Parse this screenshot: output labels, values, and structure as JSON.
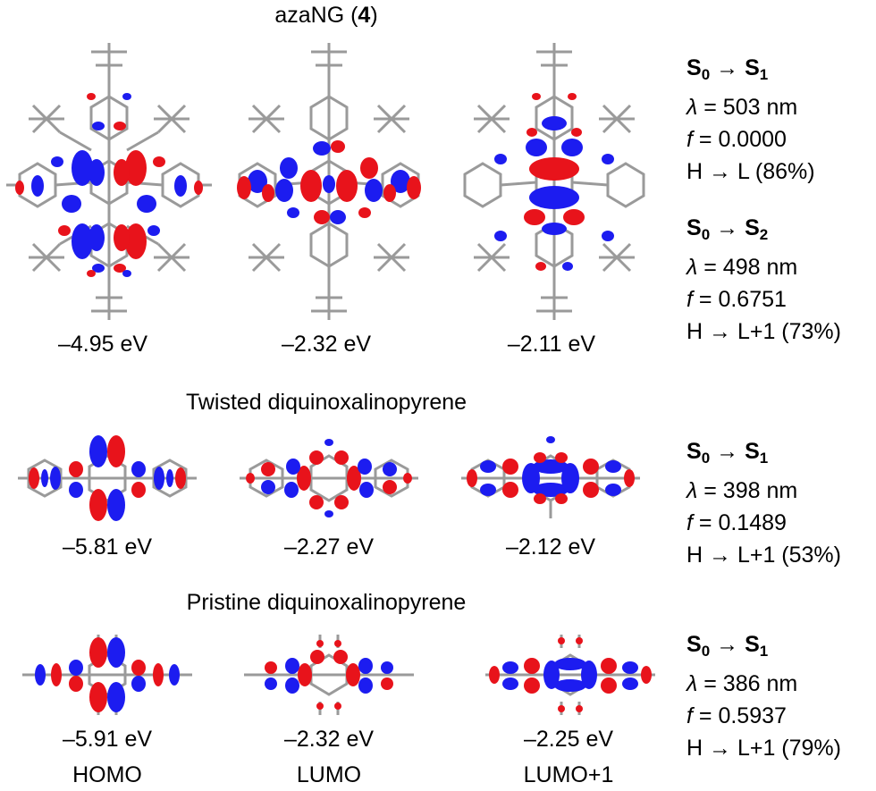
{
  "sections": [
    {
      "title": "azaNG (4)",
      "title_name": "azaNG (",
      "title_num": "4",
      "title_end": ")",
      "energies": [
        "–4.95 eV",
        "–2.32 eV",
        "–2.11 eV"
      ],
      "transitions": [
        {
          "label": "S0 → S1",
          "s_from": "0",
          "s_to": "1",
          "lambda": " = 503 nm",
          "f": " = 0.0000",
          "contrib": "H → L (86%)"
        },
        {
          "label": "S0 → S2",
          "s_from": "0",
          "s_to": "2",
          "lambda": " = 498 nm",
          "f": " = 0.6751",
          "contrib": "H → L+1 (73%)"
        }
      ]
    },
    {
      "title": "Twisted diquinoxalinopyrene",
      "energies": [
        "–5.81 eV",
        "–2.27 eV",
        "–2.12 eV"
      ],
      "transitions": [
        {
          "label": "S0 → S1",
          "s_from": "0",
          "s_to": "1",
          "lambda": " = 398 nm",
          "f": " = 0.1489",
          "contrib": "H → L+1 (53%)"
        }
      ]
    },
    {
      "title": "Pristine diquinoxalinopyrene",
      "energies": [
        "–5.91 eV",
        "–2.32 eV",
        "–2.25 eV"
      ],
      "transitions": [
        {
          "label": "S0 → S1",
          "s_from": "0",
          "s_to": "1",
          "lambda": " = 386 nm",
          "f": " = 0.5937",
          "contrib": "H → L+1 (79%)"
        }
      ]
    }
  ],
  "orbital_labels": [
    "HOMO",
    "LUMO",
    "LUMO+1"
  ],
  "symbols": {
    "S": "S",
    "arrow": " → ",
    "lambda": "λ",
    "f": "f"
  },
  "colors": {
    "positive_lobe": "#e8131b",
    "negative_lobe": "#1c1cf0",
    "bond": "#9a9a9a"
  }
}
